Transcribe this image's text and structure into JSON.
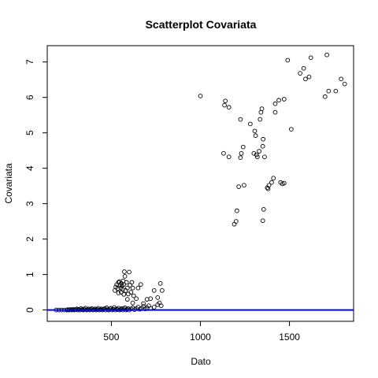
{
  "chart_data": {
    "type": "scatter",
    "title": "Scatterplot Covariata",
    "xlabel": "Dato",
    "ylabel": "Covariata",
    "xlim": [
      140,
      1860
    ],
    "ylim": [
      -0.32,
      7.46
    ],
    "x_ticks": [
      500,
      1000,
      1500
    ],
    "y_ticks": [
      0,
      1,
      2,
      3,
      4,
      5,
      6,
      7
    ],
    "hline": {
      "y": 0,
      "color": "#0000ff"
    },
    "grid": false,
    "points": [
      [
        190,
        0.0
      ],
      [
        205,
        0.0
      ],
      [
        220,
        0.0
      ],
      [
        235,
        0.0
      ],
      [
        250,
        0.0
      ],
      [
        255,
        0.01
      ],
      [
        262,
        0.0
      ],
      [
        270,
        0.01
      ],
      [
        278,
        0.0
      ],
      [
        285,
        0.02
      ],
      [
        292,
        0.0
      ],
      [
        300,
        0.01
      ],
      [
        306,
        0.03
      ],
      [
        312,
        0.0
      ],
      [
        318,
        0.02
      ],
      [
        325,
        0.0
      ],
      [
        330,
        0.04
      ],
      [
        336,
        0.01
      ],
      [
        342,
        0.0
      ],
      [
        348,
        0.02
      ],
      [
        354,
        0.05
      ],
      [
        360,
        0.0
      ],
      [
        366,
        0.01
      ],
      [
        372,
        0.03
      ],
      [
        378,
        0.0
      ],
      [
        384,
        0.02
      ],
      [
        390,
        0.04
      ],
      [
        396,
        0.0
      ],
      [
        402,
        0.01
      ],
      [
        408,
        0.03
      ],
      [
        414,
        0.0
      ],
      [
        420,
        0.02
      ],
      [
        426,
        0.05
      ],
      [
        432,
        0.0
      ],
      [
        438,
        0.01
      ],
      [
        444,
        0.03
      ],
      [
        450,
        0.0
      ],
      [
        456,
        0.02
      ],
      [
        462,
        0.04
      ],
      [
        468,
        0.0
      ],
      [
        474,
        0.06
      ],
      [
        480,
        0.01
      ],
      [
        486,
        0.0
      ],
      [
        492,
        0.03
      ],
      [
        498,
        0.05
      ],
      [
        504,
        0.0
      ],
      [
        510,
        0.02
      ],
      [
        516,
        0.07
      ],
      [
        522,
        0.0
      ],
      [
        528,
        0.03
      ],
      [
        534,
        0.01
      ],
      [
        540,
        0.05
      ],
      [
        546,
        0.0
      ],
      [
        552,
        0.02
      ],
      [
        558,
        0.04
      ],
      [
        564,
        0.0
      ],
      [
        570,
        0.03
      ],
      [
        576,
        0.06
      ],
      [
        582,
        0.0
      ],
      [
        588,
        0.02
      ],
      [
        594,
        0.04
      ],
      [
        600,
        0.0
      ],
      [
        610,
        0.03
      ],
      [
        620,
        0.06
      ],
      [
        630,
        0.01
      ],
      [
        640,
        0.04
      ],
      [
        650,
        0.08
      ],
      [
        660,
        0.02
      ],
      [
        670,
        0.05
      ],
      [
        680,
        0.1
      ],
      [
        690,
        0.03
      ],
      [
        700,
        0.06
      ],
      [
        710,
        0.12
      ],
      [
        720,
        0.04
      ],
      [
        740,
        0.08
      ],
      [
        760,
        0.15
      ],
      [
        770,
        0.2
      ],
      [
        780,
        0.12
      ],
      [
        520,
        0.55
      ],
      [
        525,
        0.65
      ],
      [
        530,
        0.72
      ],
      [
        535,
        0.6
      ],
      [
        540,
        0.78
      ],
      [
        545,
        0.8
      ],
      [
        550,
        0.7
      ],
      [
        553,
        0.62
      ],
      [
        556,
        0.75
      ],
      [
        560,
        0.68
      ],
      [
        563,
        0.58
      ],
      [
        566,
        0.82
      ],
      [
        570,
        0.72
      ],
      [
        573,
        1.08
      ],
      [
        576,
        0.95
      ],
      [
        580,
        0.55
      ],
      [
        585,
        0.78
      ],
      [
        590,
        0.62
      ],
      [
        595,
        0.45
      ],
      [
        600,
        1.07
      ],
      [
        605,
        0.7
      ],
      [
        610,
        0.5
      ],
      [
        615,
        0.78
      ],
      [
        620,
        0.62
      ],
      [
        625,
        0.4
      ],
      [
        640,
        0.32
      ],
      [
        650,
        0.62
      ],
      [
        665,
        0.72
      ],
      [
        680,
        0.18
      ],
      [
        700,
        0.3
      ],
      [
        720,
        0.32
      ],
      [
        740,
        0.55
      ],
      [
        760,
        0.35
      ],
      [
        775,
        0.75
      ],
      [
        785,
        0.55
      ],
      [
        540,
        0.48
      ],
      [
        555,
        0.5
      ],
      [
        570,
        0.44
      ],
      [
        590,
        0.3
      ],
      [
        620,
        0.2
      ],
      [
        1000,
        6.04
      ],
      [
        1135,
        5.78
      ],
      [
        1140,
        5.9
      ],
      [
        1160,
        5.72
      ],
      [
        1130,
        4.42
      ],
      [
        1160,
        4.32
      ],
      [
        1190,
        2.42
      ],
      [
        1200,
        2.5
      ],
      [
        1205,
        2.8
      ],
      [
        1215,
        3.48
      ],
      [
        1225,
        4.3
      ],
      [
        1230,
        4.42
      ],
      [
        1240,
        4.6
      ],
      [
        1225,
        5.38
      ],
      [
        1245,
        3.52
      ],
      [
        1280,
        5.25
      ],
      [
        1300,
        4.42
      ],
      [
        1305,
        5.05
      ],
      [
        1310,
        4.92
      ],
      [
        1315,
        4.38
      ],
      [
        1320,
        4.32
      ],
      [
        1330,
        4.48
      ],
      [
        1335,
        5.38
      ],
      [
        1340,
        5.58
      ],
      [
        1345,
        5.68
      ],
      [
        1350,
        4.62
      ],
      [
        1352,
        4.82
      ],
      [
        1360,
        4.32
      ],
      [
        1350,
        2.52
      ],
      [
        1355,
        2.84
      ],
      [
        1375,
        3.45
      ],
      [
        1380,
        3.42
      ],
      [
        1385,
        3.52
      ],
      [
        1400,
        3.6
      ],
      [
        1410,
        3.72
      ],
      [
        1420,
        5.82
      ],
      [
        1420,
        5.58
      ],
      [
        1440,
        5.92
      ],
      [
        1450,
        3.6
      ],
      [
        1460,
        3.56
      ],
      [
        1470,
        3.58
      ],
      [
        1470,
        5.95
      ],
      [
        1490,
        7.05
      ],
      [
        1510,
        5.1
      ],
      [
        1560,
        6.68
      ],
      [
        1580,
        6.82
      ],
      [
        1590,
        6.52
      ],
      [
        1610,
        6.58
      ],
      [
        1620,
        7.12
      ],
      [
        1700,
        6.02
      ],
      [
        1710,
        7.2
      ],
      [
        1720,
        6.18
      ],
      [
        1760,
        6.18
      ],
      [
        1790,
        6.52
      ],
      [
        1810,
        6.38
      ]
    ]
  }
}
